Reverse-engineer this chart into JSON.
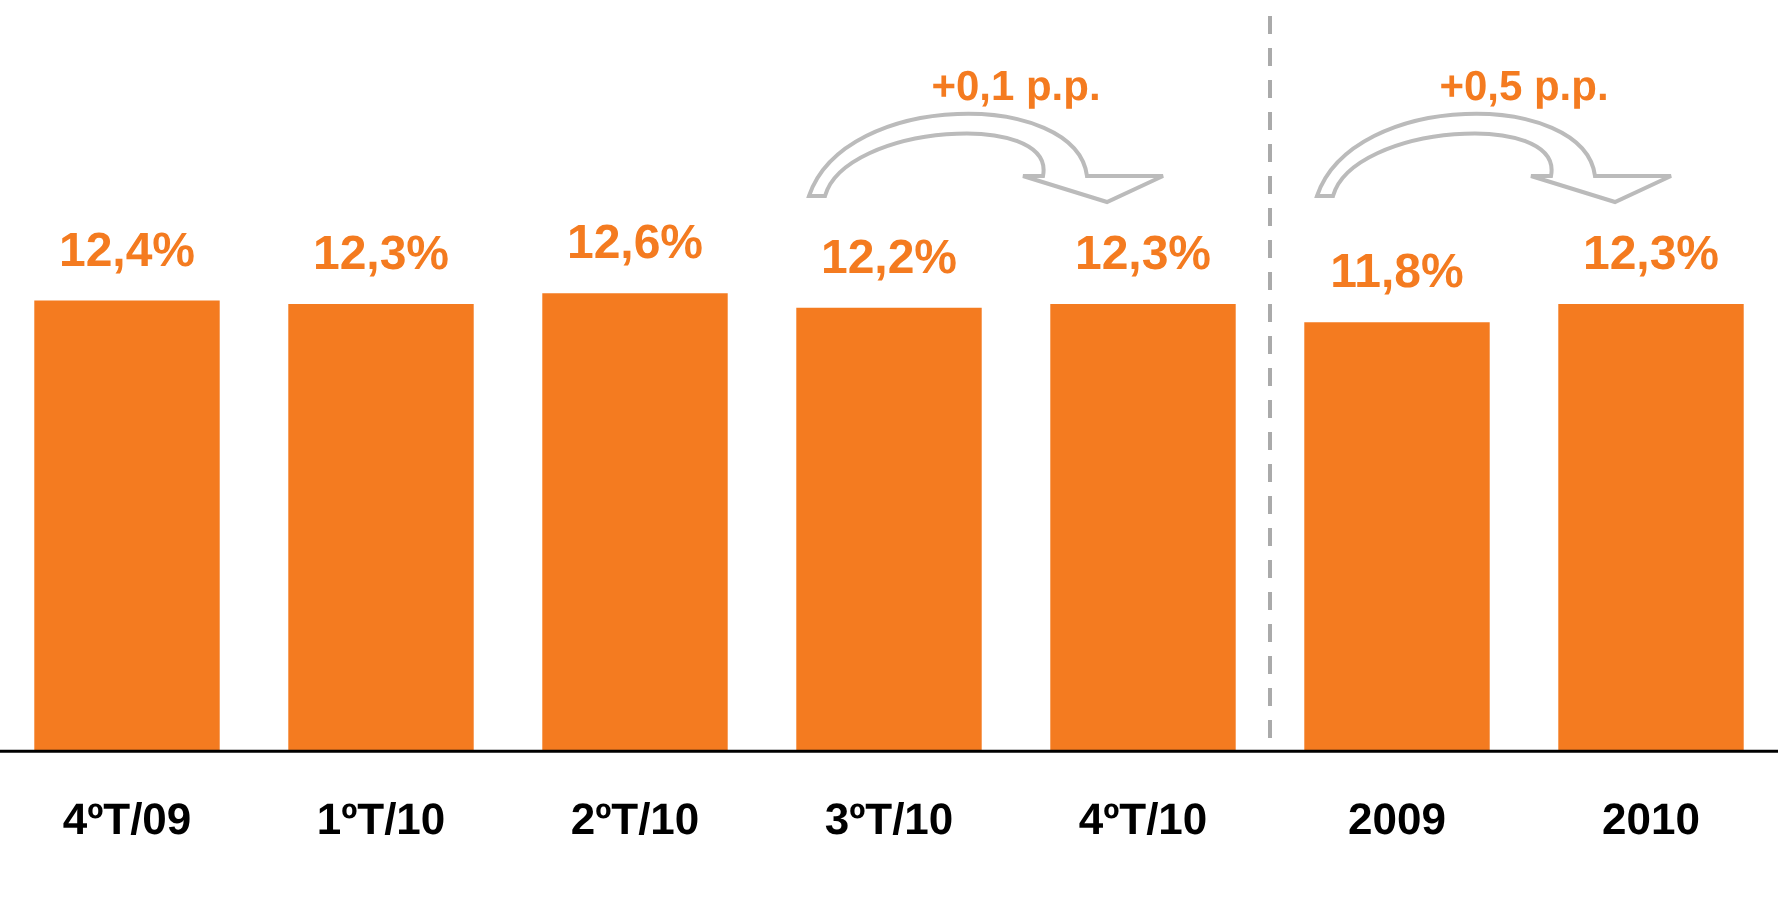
{
  "chart_data": {
    "type": "bar",
    "categories": [
      "4ºT/09",
      "1ºT/10",
      "2ºT/10",
      "3ºT/10",
      "4ºT/10",
      "2009",
      "2010"
    ],
    "values": [
      12.4,
      12.3,
      12.6,
      12.2,
      12.3,
      11.8,
      12.3
    ],
    "value_labels": [
      "12,4%",
      "12,3%",
      "12,6%",
      "12,2%",
      "12,3%",
      "11,8%",
      "12,3%"
    ],
    "color": "#f47b20",
    "grid": false,
    "legend": false,
    "annotations": [
      "+0,1 p.p.",
      "+0,5 p.p."
    ]
  }
}
